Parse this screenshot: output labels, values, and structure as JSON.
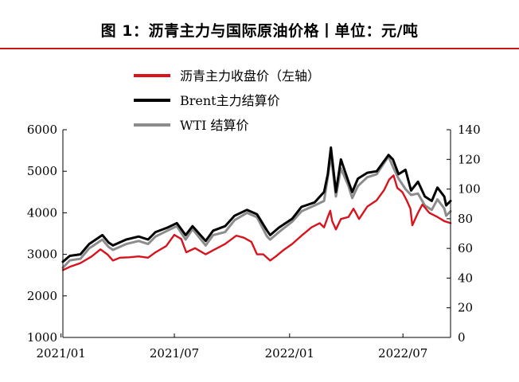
{
  "title": "图 1：沥青主力与国际原油价格丨单位：元/吨",
  "colors": {
    "asphalt": "#d7141d",
    "brent": "#000000",
    "wti": "#8c8c8c",
    "title_rule": "#c8161d"
  },
  "chart_data": {
    "type": "line",
    "title": "图 1：沥青主力与国际原油价格丨单位：元/吨",
    "x_ticks": [
      "2021/01",
      "2021/07",
      "2022/01",
      "2022/07"
    ],
    "x_range": [
      "2021-01-04",
      "2022-09-15"
    ],
    "y_left": {
      "ticks": [
        1000,
        2000,
        3000,
        4000,
        5000,
        6000
      ],
      "lim": [
        1000,
        6000
      ]
    },
    "y_right": {
      "ticks": [
        0,
        20,
        40,
        60,
        80,
        100,
        120,
        140
      ],
      "lim": [
        0,
        140
      ]
    },
    "legend_position": "top-center",
    "series": [
      {
        "name": "沥青主力收盘价（左轴）",
        "axis": "left",
        "color": "#d7141d",
        "points": [
          [
            "2021-01-04",
            2620
          ],
          [
            "2021-01-15",
            2700
          ],
          [
            "2021-02-01",
            2790
          ],
          [
            "2021-02-19",
            2950
          ],
          [
            "2021-03-05",
            3120
          ],
          [
            "2021-03-16",
            3000
          ],
          [
            "2021-03-25",
            2850
          ],
          [
            "2021-04-05",
            2920
          ],
          [
            "2021-04-20",
            2930
          ],
          [
            "2021-05-05",
            2950
          ],
          [
            "2021-05-20",
            2920
          ],
          [
            "2021-06-01",
            3050
          ],
          [
            "2021-06-18",
            3200
          ],
          [
            "2021-07-01",
            3470
          ],
          [
            "2021-07-12",
            3370
          ],
          [
            "2021-07-20",
            3050
          ],
          [
            "2021-08-03",
            3150
          ],
          [
            "2021-08-20",
            3000
          ],
          [
            "2021-09-01",
            3100
          ],
          [
            "2021-09-20",
            3250
          ],
          [
            "2021-10-08",
            3450
          ],
          [
            "2021-10-20",
            3400
          ],
          [
            "2021-11-01",
            3300
          ],
          [
            "2021-11-10",
            3000
          ],
          [
            "2021-11-20",
            3000
          ],
          [
            "2021-12-01",
            2850
          ],
          [
            "2021-12-10",
            2950
          ],
          [
            "2021-12-22",
            3100
          ],
          [
            "2022-01-05",
            3250
          ],
          [
            "2022-01-20",
            3450
          ],
          [
            "2022-02-05",
            3650
          ],
          [
            "2022-02-18",
            3750
          ],
          [
            "2022-02-25",
            3650
          ],
          [
            "2022-03-03",
            3900
          ],
          [
            "2022-03-07",
            4050
          ],
          [
            "2022-03-10",
            3800
          ],
          [
            "2022-03-16",
            3600
          ],
          [
            "2022-03-24",
            3850
          ],
          [
            "2022-04-05",
            3900
          ],
          [
            "2022-04-13",
            4100
          ],
          [
            "2022-04-22",
            3850
          ],
          [
            "2022-05-05",
            4150
          ],
          [
            "2022-05-20",
            4300
          ],
          [
            "2022-06-01",
            4550
          ],
          [
            "2022-06-09",
            4800
          ],
          [
            "2022-06-16",
            4900
          ],
          [
            "2022-06-22",
            4600
          ],
          [
            "2022-06-30",
            4500
          ],
          [
            "2022-07-07",
            4300
          ],
          [
            "2022-07-13",
            4100
          ],
          [
            "2022-07-16",
            3700
          ],
          [
            "2022-07-25",
            4000
          ],
          [
            "2022-08-01",
            4200
          ],
          [
            "2022-08-12",
            4000
          ],
          [
            "2022-08-25",
            3900
          ],
          [
            "2022-09-05",
            3800
          ],
          [
            "2022-09-15",
            3750
          ]
        ]
      },
      {
        "name": "Brent主力结算价",
        "axis": "right",
        "color": "#000000",
        "points": [
          [
            "2021-01-04",
            51
          ],
          [
            "2021-01-15",
            55
          ],
          [
            "2021-02-01",
            56
          ],
          [
            "2021-02-15",
            63
          ],
          [
            "2021-03-08",
            69
          ],
          [
            "2021-03-18",
            64
          ],
          [
            "2021-03-25",
            62
          ],
          [
            "2021-04-15",
            66
          ],
          [
            "2021-05-05",
            68
          ],
          [
            "2021-05-20",
            66
          ],
          [
            "2021-06-01",
            71
          ],
          [
            "2021-06-20",
            74
          ],
          [
            "2021-07-05",
            77
          ],
          [
            "2021-07-19",
            69
          ],
          [
            "2021-07-30",
            75
          ],
          [
            "2021-08-20",
            65
          ],
          [
            "2021-09-01",
            72
          ],
          [
            "2021-09-20",
            75
          ],
          [
            "2021-10-05",
            82
          ],
          [
            "2021-10-25",
            86
          ],
          [
            "2021-11-10",
            83
          ],
          [
            "2021-11-26",
            72
          ],
          [
            "2021-12-01",
            69
          ],
          [
            "2021-12-15",
            74
          ],
          [
            "2022-01-05",
            80
          ],
          [
            "2022-01-20",
            88
          ],
          [
            "2022-02-10",
            91
          ],
          [
            "2022-02-25",
            98
          ],
          [
            "2022-03-03",
            110
          ],
          [
            "2022-03-08",
            128
          ],
          [
            "2022-03-16",
            98
          ],
          [
            "2022-03-24",
            120
          ],
          [
            "2022-04-05",
            105
          ],
          [
            "2022-04-11",
            98
          ],
          [
            "2022-04-20",
            107
          ],
          [
            "2022-05-05",
            111
          ],
          [
            "2022-05-20",
            112
          ],
          [
            "2022-06-08",
            123
          ],
          [
            "2022-06-15",
            120
          ],
          [
            "2022-06-24",
            110
          ],
          [
            "2022-07-05",
            113
          ],
          [
            "2022-07-14",
            99
          ],
          [
            "2022-07-25",
            105
          ],
          [
            "2022-08-05",
            95
          ],
          [
            "2022-08-16",
            92
          ],
          [
            "2022-08-25",
            101
          ],
          [
            "2022-09-05",
            95
          ],
          [
            "2022-09-08",
            89
          ],
          [
            "2022-09-15",
            92
          ]
        ]
      },
      {
        "name": "WTI 结算价",
        "axis": "right",
        "color": "#8c8c8c",
        "points": [
          [
            "2021-01-04",
            47
          ],
          [
            "2021-01-15",
            52
          ],
          [
            "2021-02-01",
            53
          ],
          [
            "2021-02-15",
            60
          ],
          [
            "2021-03-08",
            66
          ],
          [
            "2021-03-18",
            61
          ],
          [
            "2021-03-25",
            59
          ],
          [
            "2021-04-15",
            63
          ],
          [
            "2021-05-05",
            65
          ],
          [
            "2021-05-20",
            63
          ],
          [
            "2021-06-01",
            68
          ],
          [
            "2021-06-20",
            72
          ],
          [
            "2021-07-05",
            75
          ],
          [
            "2021-07-19",
            66
          ],
          [
            "2021-07-30",
            73
          ],
          [
            "2021-08-20",
            62
          ],
          [
            "2021-09-01",
            69
          ],
          [
            "2021-09-20",
            71
          ],
          [
            "2021-10-05",
            79
          ],
          [
            "2021-10-25",
            84
          ],
          [
            "2021-11-10",
            81
          ],
          [
            "2021-11-26",
            68
          ],
          [
            "2021-12-01",
            66
          ],
          [
            "2021-12-15",
            71
          ],
          [
            "2022-01-05",
            78
          ],
          [
            "2022-01-20",
            85
          ],
          [
            "2022-02-10",
            89
          ],
          [
            "2022-02-25",
            92
          ],
          [
            "2022-03-03",
            108
          ],
          [
            "2022-03-08",
            123
          ],
          [
            "2022-03-16",
            95
          ],
          [
            "2022-03-24",
            114
          ],
          [
            "2022-04-05",
            102
          ],
          [
            "2022-04-11",
            94
          ],
          [
            "2022-04-20",
            102
          ],
          [
            "2022-05-05",
            108
          ],
          [
            "2022-05-20",
            110
          ],
          [
            "2022-06-08",
            122
          ],
          [
            "2022-06-15",
            115
          ],
          [
            "2022-06-24",
            107
          ],
          [
            "2022-07-05",
            100
          ],
          [
            "2022-07-14",
            96
          ],
          [
            "2022-07-25",
            97
          ],
          [
            "2022-08-05",
            89
          ],
          [
            "2022-08-16",
            86
          ],
          [
            "2022-08-25",
            93
          ],
          [
            "2022-09-05",
            87
          ],
          [
            "2022-09-08",
            82
          ],
          [
            "2022-09-15",
            85
          ]
        ]
      }
    ]
  }
}
